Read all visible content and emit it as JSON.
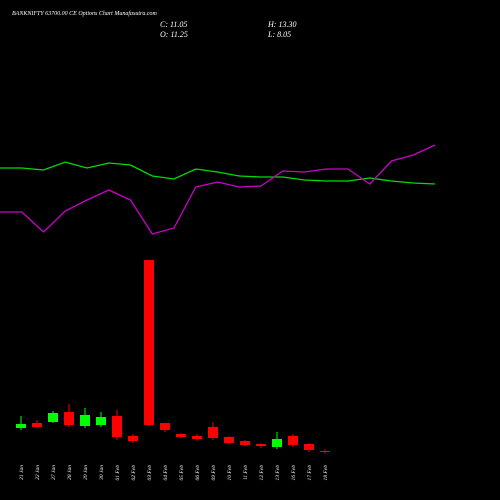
{
  "chart_data": [
    {
      "type": "candlestick",
      "title": "BANKNIFTY 63700.00 CE Options Chart Munafasutra.com",
      "annotations": [
        "C: 11.05",
        "H: 13.30",
        "O: 11.25",
        "L: 8.05"
      ],
      "categories": [
        "21 Jan",
        "22 Jan",
        "27 Jan",
        "28 Jan",
        "29 Jan",
        "30 Jan",
        "01 Feb",
        "02 Feb",
        "03 Feb",
        "04 Feb",
        "05 Feb",
        "06 Feb",
        "09 Feb",
        "10 Feb",
        "11 Feb",
        "12 Feb",
        "13 Feb",
        "16 Feb",
        "17 Feb",
        "18 Feb"
      ],
      "open": [
        40,
        46.25,
        47.5,
        60,
        42.5,
        43.75,
        55,
        30,
        250,
        46.25,
        32.5,
        30,
        41.25,
        28.75,
        23.75,
        20,
        16.25,
        30,
        20,
        11.25
      ],
      "high": [
        55,
        50,
        61.25,
        70,
        65,
        60,
        62.5,
        32.5,
        250,
        46.25,
        33.75,
        32.5,
        47.5,
        30,
        25,
        21.25,
        35,
        32.5,
        21.25,
        13.3
      ],
      "low": [
        37.5,
        40,
        46.25,
        41.25,
        40,
        41.25,
        25,
        21.25,
        42.5,
        35,
        27.5,
        23.75,
        25,
        20,
        17.5,
        15,
        13.75,
        16.25,
        10,
        8.05
      ],
      "close": [
        45,
        41.25,
        58.75,
        43.75,
        56.25,
        53.75,
        28.75,
        23.75,
        43.75,
        37.5,
        28.75,
        26.25,
        27.5,
        21.25,
        18.75,
        17.5,
        26.25,
        18.75,
        12.5,
        11.05
      ],
      "up_color": "#00ff00",
      "down_color": "#ff0000",
      "ylim": [
        0,
        250
      ]
    },
    {
      "type": "line",
      "series": [
        {
          "color": "#00dd00",
          "values": [
            82,
            82,
            80,
            88,
            82,
            87,
            85,
            74,
            71,
            81,
            78,
            74,
            73,
            73,
            70,
            69,
            69,
            72,
            69,
            67,
            66
          ]
        },
        {
          "color": "#cc00cc",
          "values": [
            38,
            38,
            18,
            39,
            50,
            60,
            50,
            16,
            22,
            63,
            68,
            63,
            64,
            79,
            78,
            81,
            81,
            66,
            89,
            95,
            105
          ]
        }
      ],
      "ylim": [
        0,
        120
      ]
    }
  ]
}
